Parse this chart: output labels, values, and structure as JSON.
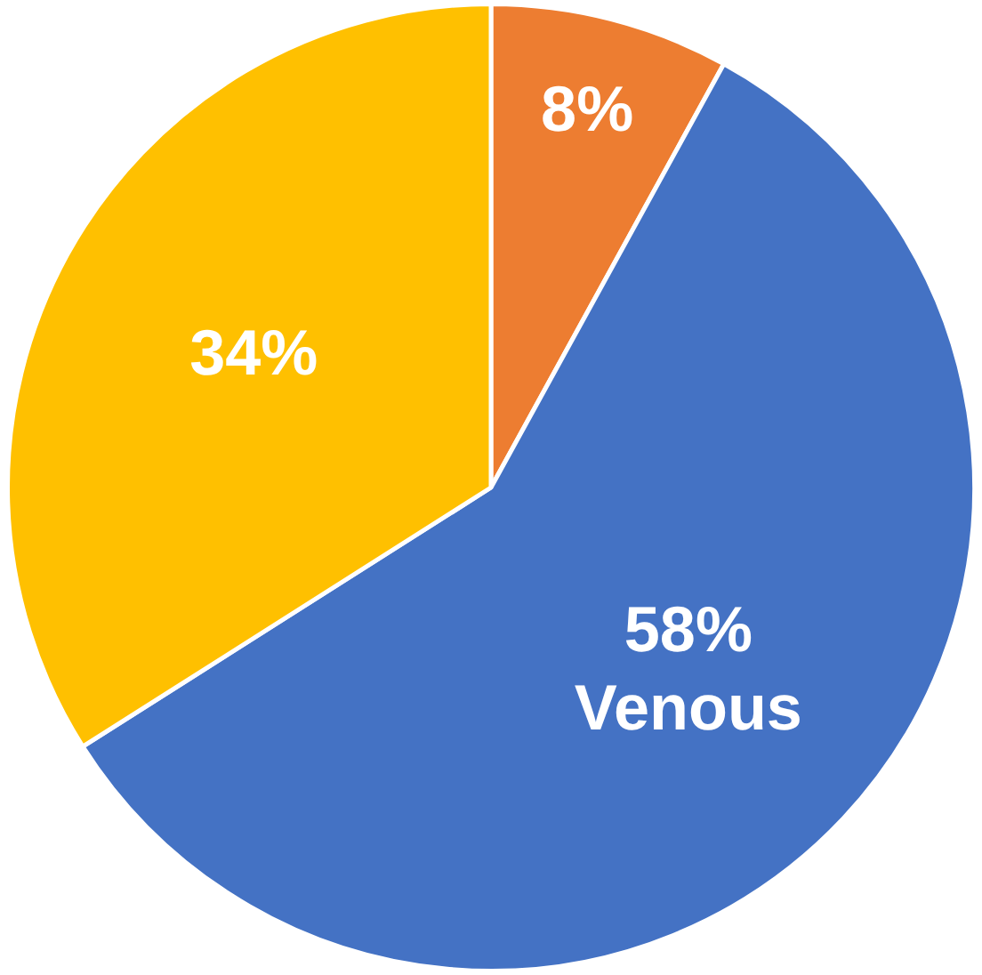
{
  "chart_data": {
    "type": "pie",
    "categories": [
      null,
      "Venous",
      null
    ],
    "values": [
      8,
      58,
      34
    ],
    "colors": [
      "#ed7d31",
      "#4472c4",
      "#ffc000"
    ],
    "value_labels": [
      "8%",
      "58%",
      "34%"
    ],
    "legend": false
  }
}
